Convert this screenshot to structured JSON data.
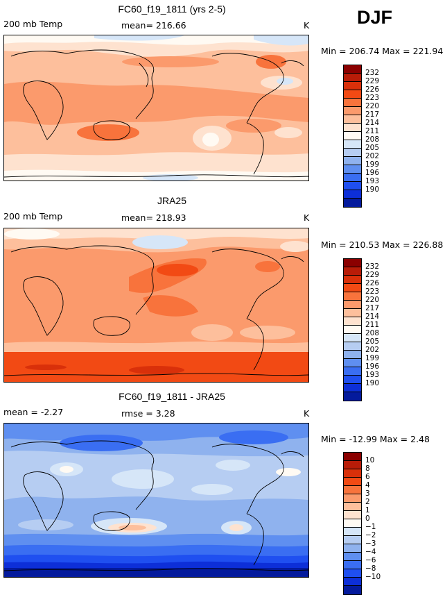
{
  "season": "DJF",
  "panels": [
    {
      "title": "FC60_f19_1811 (yrs 2-5)",
      "left_label": "200 mb Temp",
      "center_label": "mean= 216.66",
      "units": "K",
      "minmax": "Min = 206.74  Max = 221.94",
      "colorbar": {
        "colors": [
          "#8b0000",
          "#b81c08",
          "#d9300a",
          "#f24a14",
          "#f8733c",
          "#fb9a6c",
          "#fdbf9c",
          "#fee2cf",
          "#fffaf3",
          "#d6e6f8",
          "#b6cdf2",
          "#8fb2ee",
          "#5f8ff0",
          "#3a6ef2",
          "#1f4ff0",
          "#0d2fd8",
          "#041a9c"
        ],
        "ticks": [
          "232",
          "229",
          "226",
          "223",
          "220",
          "217",
          "214",
          "211",
          "208",
          "205",
          "202",
          "199",
          "196",
          "193",
          "190"
        ]
      }
    },
    {
      "title": "JRA25",
      "left_label": "200 mb Temp",
      "center_label": "mean= 218.93",
      "units": "K",
      "minmax": "Min = 210.53  Max = 226.88",
      "colorbar": {
        "colors": [
          "#8b0000",
          "#b81c08",
          "#d9300a",
          "#f24a14",
          "#f8733c",
          "#fb9a6c",
          "#fdbf9c",
          "#fee2cf",
          "#fffaf3",
          "#d6e6f8",
          "#b6cdf2",
          "#8fb2ee",
          "#5f8ff0",
          "#3a6ef2",
          "#1f4ff0",
          "#0d2fd8",
          "#041a9c"
        ],
        "ticks": [
          "232",
          "229",
          "226",
          "223",
          "220",
          "217",
          "214",
          "211",
          "208",
          "205",
          "202",
          "199",
          "196",
          "193",
          "190"
        ]
      }
    },
    {
      "title": "FC60_f19_1811 - JRA25",
      "left_label": "mean =   -2.27",
      "center_label": "rmse =    3.28",
      "units": "K",
      "minmax": "Min = -12.99  Max =    2.48",
      "colorbar": {
        "colors": [
          "#8b0000",
          "#b81c08",
          "#d9300a",
          "#f24a14",
          "#f8733c",
          "#fb9a6c",
          "#fdbf9c",
          "#fee2cf",
          "#fffaf3",
          "#d6e6f8",
          "#b6cdf2",
          "#8fb2ee",
          "#5f8ff0",
          "#3a6ef2",
          "#1f4ff0",
          "#0d2fd8",
          "#041a9c"
        ],
        "ticks": [
          "10",
          "8",
          "6",
          "4",
          "3",
          "2",
          "1",
          "0",
          "−1",
          "−2",
          "−3",
          "−4",
          "−6",
          "−8",
          "−10"
        ]
      }
    }
  ]
}
